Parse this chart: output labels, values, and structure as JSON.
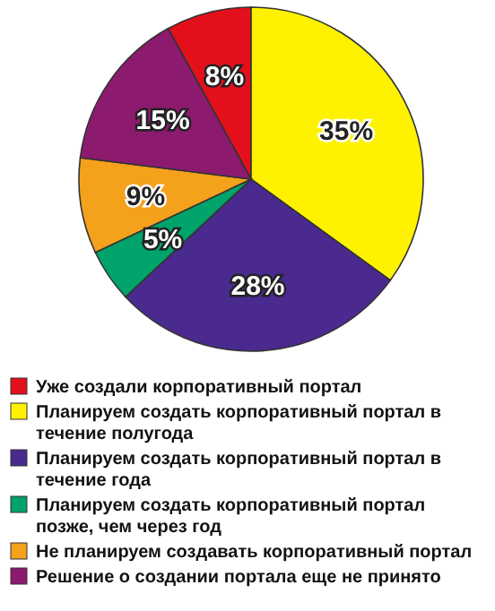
{
  "chart_data": {
    "type": "pie",
    "categories": [
      "Уже создали корпоративный портал",
      "Планируем создать корпоративный портал в течение полугода",
      "Планируем создать корпоративный портал в течение года",
      "Планируем создать корпоративный портал позже, чем через год",
      "Не планируем создавать корпоративный портал",
      "Решение о создании портала еще не принято"
    ],
    "values": [
      8,
      35,
      28,
      5,
      9,
      15
    ],
    "colors": [
      "#e3101c",
      "#fff200",
      "#4a2a8e",
      "#00a36a",
      "#f4a11c",
      "#8c1a6e"
    ],
    "value_labels": [
      "8%",
      "35%",
      "28%",
      "5%",
      "9%",
      "15%"
    ],
    "legend": "bottom"
  }
}
